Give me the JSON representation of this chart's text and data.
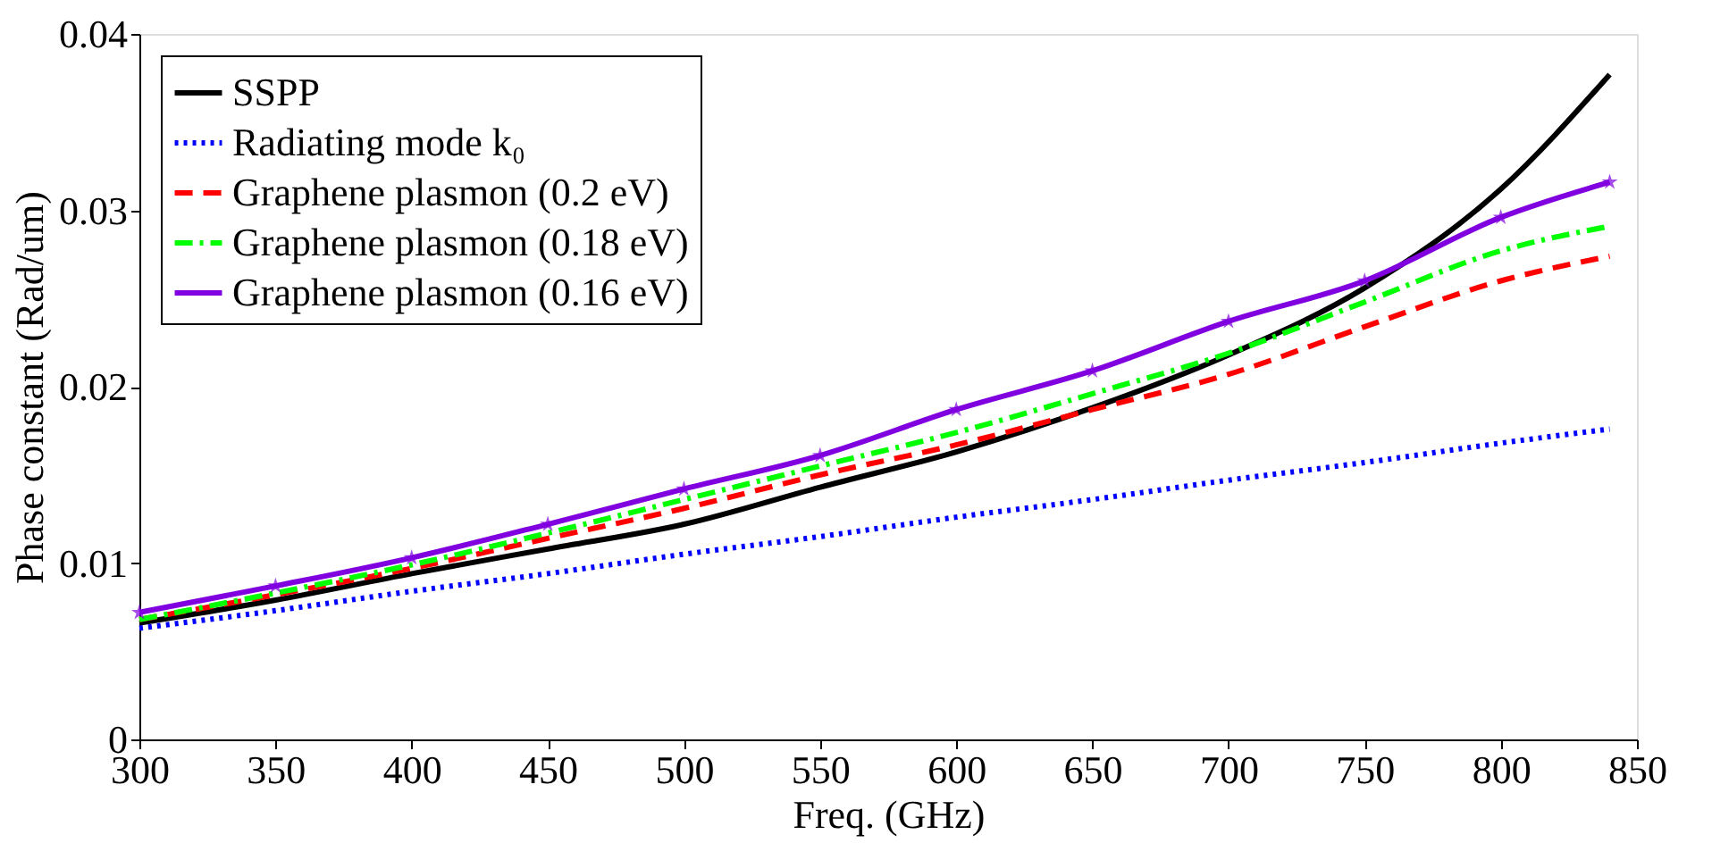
{
  "chart_data": {
    "type": "line",
    "xlabel": "Freq. (GHz)",
    "ylabel": "Phase constant (Rad/um)",
    "xlim": [
      300,
      850
    ],
    "xticks": [
      300,
      350,
      400,
      450,
      500,
      550,
      600,
      650,
      700,
      750,
      800,
      850
    ],
    "ylim": [
      0,
      0.04
    ],
    "yticks": [
      0,
      0.01,
      0.02,
      0.03,
      0.04
    ],
    "grid": false,
    "legend": "top left",
    "x": [
      300,
      350,
      400,
      450,
      500,
      550,
      600,
      650,
      700,
      750,
      800,
      840
    ],
    "series": [
      {
        "name": "SSPP",
        "color": "#000000",
        "line_style": "solid",
        "marker": "none",
        "values": [
          0.0066,
          0.0079,
          0.0094,
          0.0108,
          0.0122,
          0.0143,
          0.0163,
          0.0188,
          0.0218,
          0.0256,
          0.0312,
          0.0377
        ]
      },
      {
        "name": "Radiating mode k₀",
        "color": "#0000ff",
        "line_style": "dotted",
        "marker": "none",
        "values": [
          0.0063,
          0.0073,
          0.0084,
          0.0094,
          0.0105,
          0.0115,
          0.0126,
          0.0136,
          0.0147,
          0.0157,
          0.0168,
          0.0176
        ]
      },
      {
        "name": "Graphene plasmon (0.2 eV)",
        "color": "#ff0000",
        "line_style": "dashed",
        "marker": "none",
        "values": [
          0.0068,
          0.0082,
          0.0097,
          0.0114,
          0.0131,
          0.015,
          0.0167,
          0.0187,
          0.0207,
          0.0234,
          0.026,
          0.0274
        ]
      },
      {
        "name": "Graphene plasmon (0.18 eV)",
        "color": "#00ff00",
        "line_style": "dashdot",
        "marker": "none",
        "values": [
          0.0068,
          0.0083,
          0.0099,
          0.0117,
          0.0136,
          0.0155,
          0.0174,
          0.0196,
          0.0219,
          0.0248,
          0.0277,
          0.0291
        ]
      },
      {
        "name": "Graphene plasmon (0.16 eV)",
        "color": "#8000e0",
        "line_style": "solid",
        "marker": "star",
        "values": [
          0.0072,
          0.0087,
          0.0103,
          0.0122,
          0.0142,
          0.0161,
          0.0187,
          0.0209,
          0.0237,
          0.026,
          0.0296,
          0.0316
        ]
      }
    ]
  }
}
